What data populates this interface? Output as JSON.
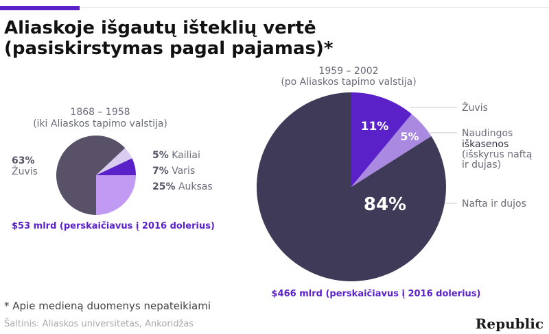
{
  "title": {
    "line1": "Aliaskoje išgautų išteklių vertė",
    "line2": "(pasiskirstymas pagal pajamas)*"
  },
  "chart_data": [
    {
      "type": "pie",
      "period": "1868 – 1958",
      "subtitle": "(iki Aliaskos tapimo valstija)",
      "total_note": "$53 mlrd (perskaičiavus į 2016 dolerius)",
      "slices": [
        {
          "name": "Kailiai",
          "label": "Kailiai",
          "pct_label": "5%",
          "value": 5,
          "color": "#d9ccf0"
        },
        {
          "name": "Varis",
          "label": "Varis",
          "pct_label": "7%",
          "value": 7,
          "color": "#5b21c9"
        },
        {
          "name": "Auksas",
          "label": "Auksas",
          "pct_label": "25%",
          "value": 25,
          "color": "#c19af3"
        },
        {
          "name": "Žuvis",
          "label": "Žuvis",
          "pct_label": "63%",
          "value": 63,
          "color": "#585167"
        }
      ]
    },
    {
      "type": "pie",
      "period": "1959 – 2002",
      "subtitle": "(po Aliaskos tapimo valstija)",
      "total_note": "$466 mlrd (perskaičiavus į 2016 dolerius)",
      "slices": [
        {
          "name": "Žuvis",
          "label": "Žuvis",
          "pct_label": "11%",
          "value": 11,
          "color": "#5b21c9"
        },
        {
          "name": "Naudingos iškasenos",
          "label_lines": [
            "Naudingos",
            "iškasenos",
            "(išskyrus naftą",
            "ir dujas)"
          ],
          "pct_label": "5%",
          "value": 5,
          "color": "#a98ae0"
        },
        {
          "name": "Nafta ir dujos",
          "label": "Nafta ir dujos",
          "pct_label": "84%",
          "value": 84,
          "color": "#3f3a58"
        }
      ]
    }
  ],
  "footnote": "* Apie medieną duomenys nepateikiami",
  "source": "Šaltinis: Aliaskos universitetas, Ankoridžas",
  "logo": "Republic",
  "colors": {
    "accent": "#5b21c9",
    "label_gray": "#6b6b7a",
    "note_purple": "#5b21c9"
  }
}
